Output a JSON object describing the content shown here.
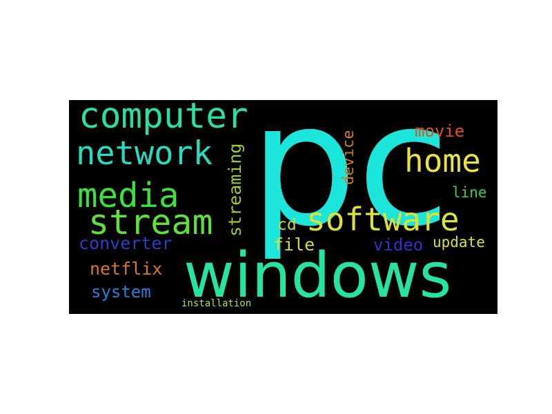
{
  "wordcloud": {
    "background": "#000000",
    "words": [
      {
        "key": "pc",
        "text": "pc",
        "color": "#1ce6dc"
      },
      {
        "key": "windows",
        "text": "windows",
        "color": "#26e3a0"
      },
      {
        "key": "computer",
        "text": "computer",
        "color": "#2ae0a0"
      },
      {
        "key": "network",
        "text": "network",
        "color": "#24dcc2"
      },
      {
        "key": "media",
        "text": "media",
        "color": "#3ae23a"
      },
      {
        "key": "stream",
        "text": "stream",
        "color": "#5ee23a"
      },
      {
        "key": "software",
        "text": "software",
        "color": "#dbe236"
      },
      {
        "key": "home",
        "text": "home",
        "color": "#e8e23a"
      },
      {
        "key": "movie",
        "text": "movie",
        "color": "#e0521a"
      },
      {
        "key": "streaming",
        "text": "streaming",
        "color": "#9ac930"
      },
      {
        "key": "device",
        "text": "device",
        "color": "#d17a22"
      },
      {
        "key": "line",
        "text": "line",
        "color": "#36d24a"
      },
      {
        "key": "cd",
        "text": "cd",
        "color": "#c9d83a"
      },
      {
        "key": "file",
        "text": "file",
        "color": "#d6dc48"
      },
      {
        "key": "converter",
        "text": "converter",
        "color": "#2a3ec9"
      },
      {
        "key": "video",
        "text": "video",
        "color": "#3a2ad2"
      },
      {
        "key": "update",
        "text": "update",
        "color": "#d8e236"
      },
      {
        "key": "netflix",
        "text": "netflix",
        "color": "#d8782a"
      },
      {
        "key": "system",
        "text": "system",
        "color": "#2c7fd6"
      },
      {
        "key": "installation",
        "text": "installation",
        "color": "#b6e03a"
      }
    ]
  }
}
